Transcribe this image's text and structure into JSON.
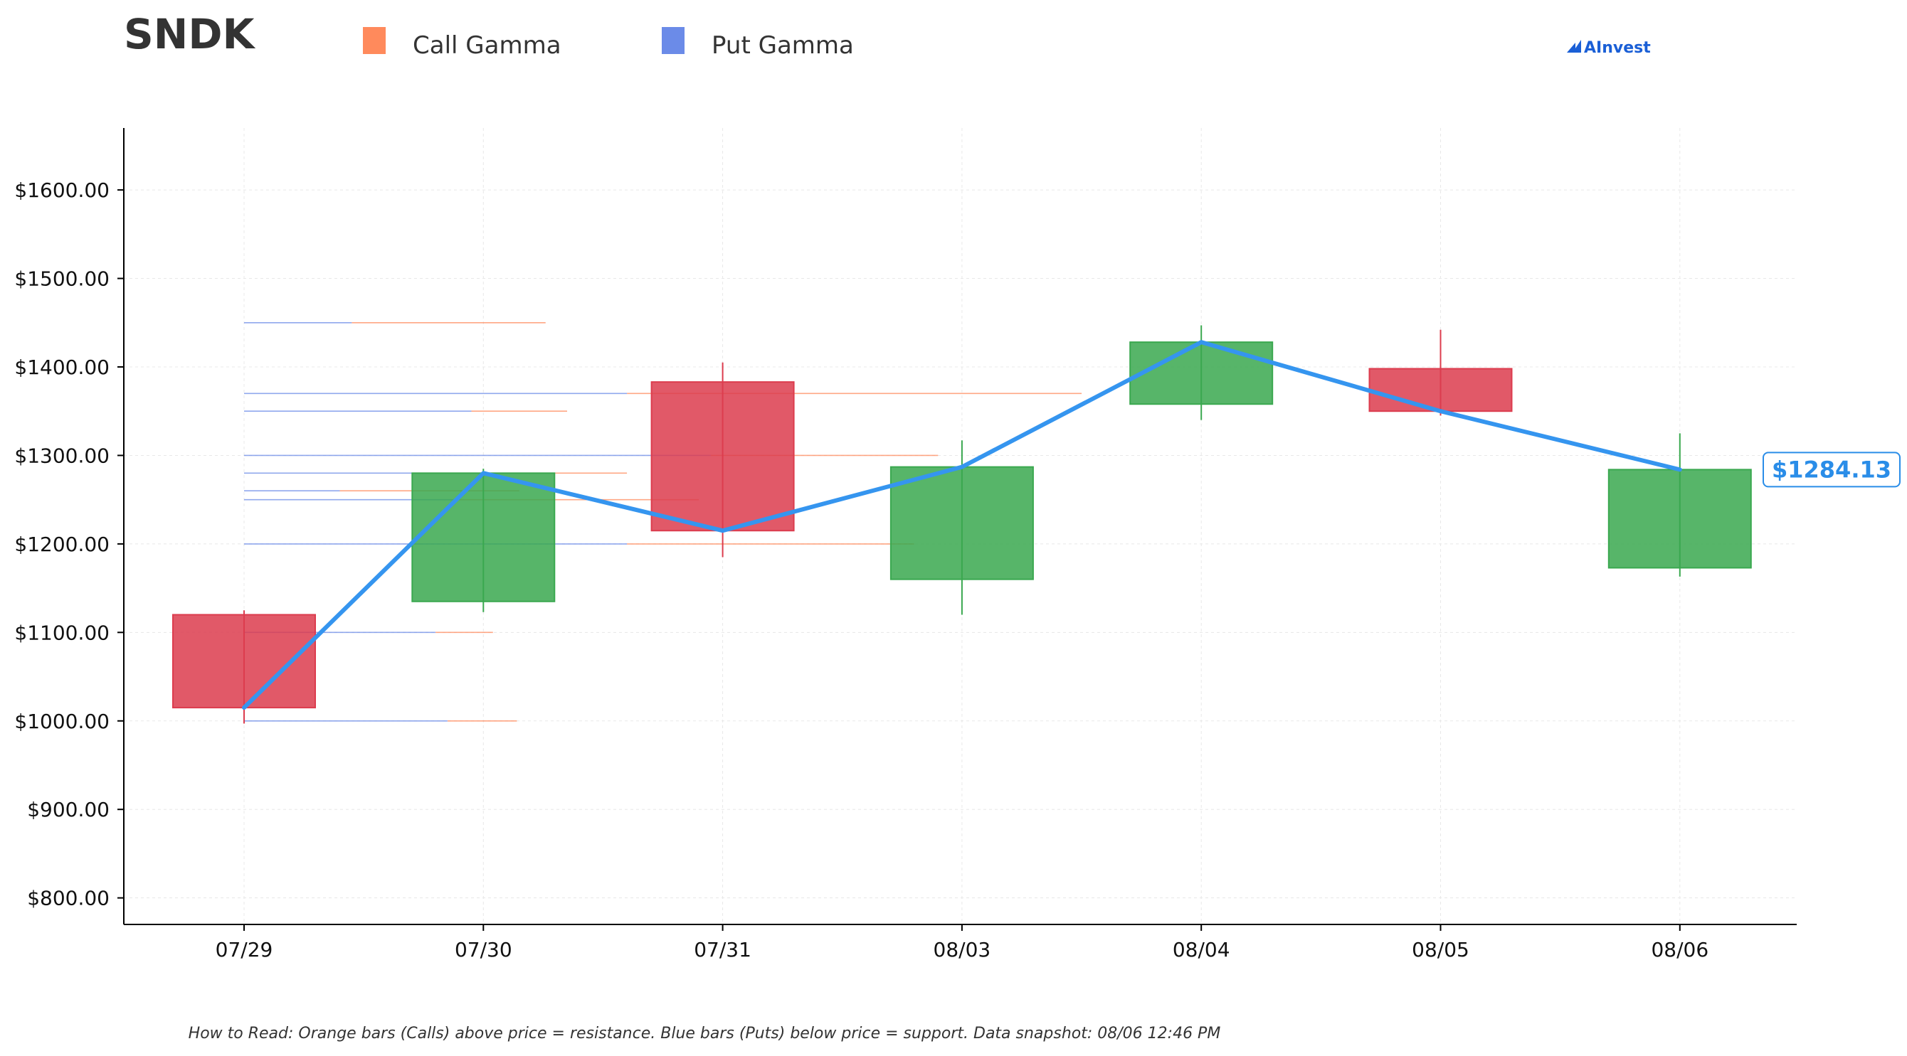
{
  "header": {
    "ticker": "SNDK",
    "legend": [
      {
        "label": "Call Gamma",
        "color": "#ff8a5c"
      },
      {
        "label": "Put Gamma",
        "color": "#6b8be8"
      }
    ],
    "brand": "AInvest",
    "brand_icon": "ainvest-logo-icon"
  },
  "footnote": "How to Read: Orange bars (Calls) above price = resistance. Blue bars (Puts) below price = support. Data snapshot: 08/06 12:46 PM",
  "chart_data": {
    "type": "candlestick",
    "title": "",
    "xlabel": "",
    "ylabel": "",
    "ylim": [
      770,
      1670
    ],
    "y_ticks": [
      800,
      900,
      1000,
      1100,
      1200,
      1300,
      1400,
      1500,
      1600
    ],
    "y_tick_labels": [
      "$800.00",
      "$900.00",
      "$1000.00",
      "$1100.00",
      "$1200.00",
      "$1300.00",
      "$1400.00",
      "$1500.00",
      "$1600.00"
    ],
    "grid": true,
    "categories": [
      "07/29",
      "07/30",
      "07/31",
      "08/03",
      "08/04",
      "08/05",
      "08/06"
    ],
    "candles": [
      {
        "date": "07/29",
        "open": 1120,
        "high": 1125,
        "low": 997,
        "close": 1015,
        "direction": "down"
      },
      {
        "date": "07/30",
        "open": 1135,
        "high": 1285,
        "low": 1123,
        "close": 1280,
        "direction": "up"
      },
      {
        "date": "07/31",
        "open": 1383,
        "high": 1405,
        "low": 1185,
        "close": 1215,
        "direction": "down"
      },
      {
        "date": "08/03",
        "open": 1160,
        "high": 1317,
        "low": 1120,
        "close": 1287,
        "direction": "up"
      },
      {
        "date": "08/04",
        "open": 1358,
        "high": 1447,
        "low": 1340,
        "close": 1428,
        "direction": "up"
      },
      {
        "date": "08/05",
        "open": 1398,
        "high": 1442,
        "low": 1345,
        "close": 1350,
        "direction": "down"
      },
      {
        "date": "08/06",
        "open": 1173,
        "high": 1325,
        "low": 1163,
        "close": 1284,
        "direction": "up"
      }
    ],
    "price_line": {
      "color": "#3595ef",
      "values": [
        1015,
        1280,
        1215,
        1287,
        1428,
        1350,
        1284
      ]
    },
    "last_price_label": "$1284.13",
    "gamma_levels": [
      {
        "strike": 1450,
        "put_end": 0.45,
        "call_end": 1.26
      },
      {
        "strike": 1370,
        "put_end": 1.6,
        "call_end": 3.5
      },
      {
        "strike": 1350,
        "put_end": 0.95,
        "call_end": 1.35
      },
      {
        "strike": 1300,
        "put_end": 1.95,
        "call_end": 2.9
      },
      {
        "strike": 1280,
        "put_end": 1.3,
        "call_end": 1.6
      },
      {
        "strike": 1260,
        "put_end": 0.4,
        "call_end": 1.15
      },
      {
        "strike": 1250,
        "put_end": 0.9,
        "call_end": 1.9
      },
      {
        "strike": 1200,
        "put_end": 1.6,
        "call_end": 2.8
      },
      {
        "strike": 1100,
        "put_end": 0.8,
        "call_end": 1.04
      },
      {
        "strike": 1000,
        "put_end": 0.85,
        "call_end": 1.14
      }
    ],
    "colors": {
      "up": "#3aa84f",
      "down": "#dc3c4e",
      "call": "#ff8a5c",
      "put": "#6b8be8",
      "axis": "#000000",
      "grid": "#e8e8e8"
    }
  }
}
